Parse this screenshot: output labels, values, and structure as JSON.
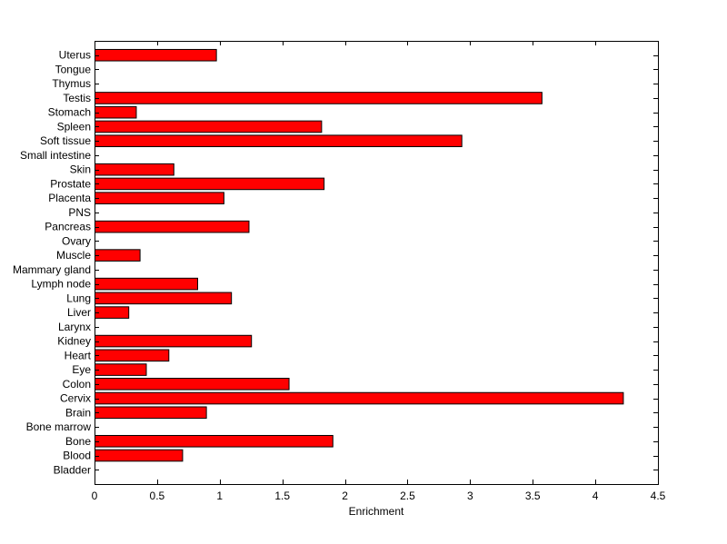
{
  "chart_data": {
    "type": "bar",
    "orientation": "horizontal",
    "title": "",
    "xlabel": "Enrichment",
    "ylabel": "",
    "xlim": [
      0,
      4.5
    ],
    "xticks": [
      "0",
      "0.5",
      "1",
      "1.5",
      "2",
      "2.5",
      "3",
      "3.5",
      "4",
      "4.5"
    ],
    "grid": false,
    "bar_color": "#ff0000",
    "bar_edge_color": "#000000",
    "categories": [
      "Bladder",
      "Blood",
      "Bone",
      "Bone marrow",
      "Brain",
      "Cervix",
      "Colon",
      "Eye",
      "Heart",
      "Kidney",
      "Larynx",
      "Liver",
      "Lung",
      "Lymph node",
      "Mammary gland",
      "Muscle",
      "Ovary",
      "Pancreas",
      "PNS",
      "Placenta",
      "Prostate",
      "Skin",
      "Small intestine",
      "Soft tissue",
      "Spleen",
      "Stomach",
      "Testis",
      "Thymus",
      "Tongue",
      "Uterus"
    ],
    "values": [
      0,
      0.7,
      1.9,
      0,
      0.89,
      4.22,
      1.55,
      0.41,
      0.59,
      1.25,
      0,
      0.27,
      1.09,
      0.82,
      0,
      0.36,
      0,
      1.23,
      0,
      1.03,
      1.83,
      0.63,
      0,
      2.93,
      1.81,
      0.33,
      3.57,
      0,
      0,
      0.97
    ]
  }
}
